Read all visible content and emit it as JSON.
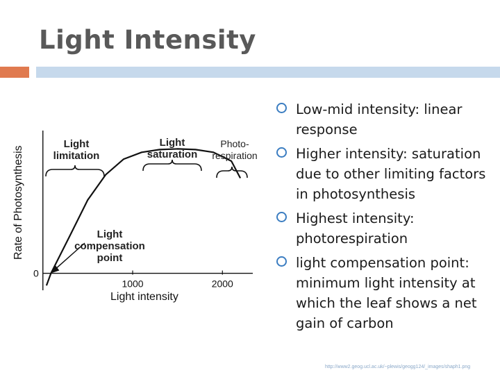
{
  "slide": {
    "title": "Light Intensity",
    "bullets": [
      "Low-mid intensity: linear response",
      "Higher intensity: saturation due to other limiting factors in photosynthesis",
      "Highest intensity: photorespiration",
      "light compensation point: minimum light intensity at which the leaf shows a net gain of carbon"
    ],
    "footer_url": "http://www2.geog.ucl.ac.uk/~plewis/geogg124/_images/shaph1.png",
    "accent_colors": {
      "orange_bar": "#e07a4f",
      "blue_bar": "#c6d9ec",
      "bullet_ring": "#3b7dc1"
    }
  },
  "chart_data": {
    "type": "line",
    "ylabel": "Rate of Photosynthesis",
    "xlabel": "Light intensity",
    "x_ticks": [
      "0",
      "1000",
      "2000"
    ],
    "y_ticks": [
      "0"
    ],
    "annotations": {
      "light_limitation": "Light limitation",
      "light_saturation": "Light saturation",
      "photorespiration": "Photo-respiration",
      "compensation_point": "Light compensation point"
    },
    "series": [
      {
        "x": [
          90,
          300,
          500,
          700,
          900,
          1100,
          1300,
          1500,
          1700,
          1900,
          2100,
          2200
        ],
        "y": [
          0,
          55,
          108,
          145,
          168,
          178,
          182,
          183,
          182,
          178,
          165,
          140
        ]
      }
    ],
    "xlim": [
      -60,
      2400
    ],
    "ylim": [
      -25,
      210
    ],
    "grid": false
  }
}
